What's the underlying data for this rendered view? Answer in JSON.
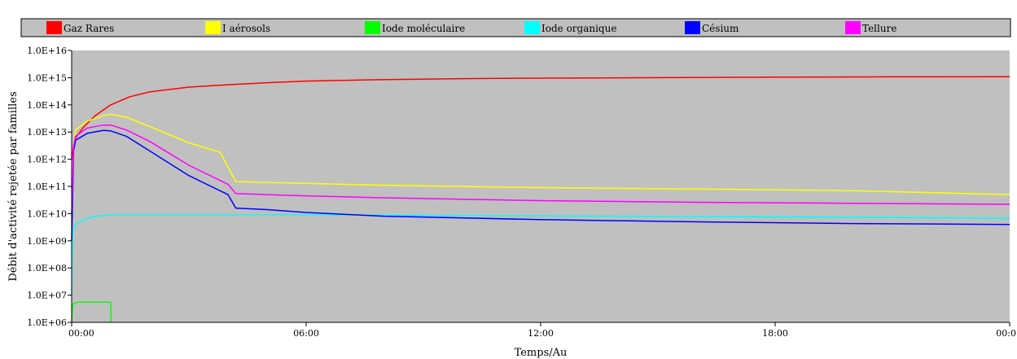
{
  "chart_data": {
    "type": "line",
    "xlabel": "Temps/Au",
    "ylabel": "Débit d'activité  rejetée par familles",
    "y_scale": "log",
    "ylim": [
      1000000,
      10000000000000000
    ],
    "xlim": [
      0,
      24
    ],
    "grid": false,
    "legend_placement": "top",
    "plot_background": "#c0c0c0",
    "x_ticks": [
      {
        "value": 0,
        "label": "00:00"
      },
      {
        "value": 6,
        "label": "06:00"
      },
      {
        "value": 12,
        "label": "12:00"
      },
      {
        "value": 18,
        "label": "18:00"
      },
      {
        "value": 24,
        "label": "00:0"
      }
    ],
    "y_ticks": [
      {
        "value": 1000000,
        "label": "1.0E+06"
      },
      {
        "value": 10000000,
        "label": "1.0E+07"
      },
      {
        "value": 100000000,
        "label": "1.0E+08"
      },
      {
        "value": 1000000000,
        "label": "1.0E+09"
      },
      {
        "value": 10000000000,
        "label": "1.0E+10"
      },
      {
        "value": 100000000000,
        "label": "1.0E+11"
      },
      {
        "value": 1000000000000,
        "label": "1.0E+12"
      },
      {
        "value": 10000000000000,
        "label": "1.0E+13"
      },
      {
        "value": 100000000000000,
        "label": "1.0E+14"
      },
      {
        "value": 1000000000000000,
        "label": "1.0E+15"
      },
      {
        "value": 10000000000000000,
        "label": "1.0E+16"
      }
    ],
    "series": [
      {
        "name": "Gaz Rares",
        "color": "#ff0000",
        "x": [
          0,
          0.05,
          0.1,
          0.3,
          0.6,
          1,
          1.5,
          2,
          3,
          4,
          5,
          6,
          8,
          10,
          12,
          15,
          18,
          21,
          24
        ],
        "y": [
          1000000000000.0,
          3000000000000.0,
          6000000000000.0,
          15000000000000.0,
          40000000000000.0,
          100000000000000.0,
          200000000000000.0,
          300000000000000.0,
          450000000000000.0,
          550000000000000.0,
          650000000000000.0,
          750000000000000.0,
          850000000000000.0,
          920000000000000.0,
          960000000000000.0,
          1000000000000000.0,
          1050000000000000.0,
          1070000000000000.0,
          1080000000000000.0
        ]
      },
      {
        "name": "I aérosols",
        "color": "#ffff00",
        "x": [
          0,
          0.05,
          0.1,
          0.4,
          0.8,
          1,
          1.4,
          2,
          3,
          3.8,
          4.2,
          5,
          6,
          8,
          12,
          16,
          20,
          24
        ],
        "y": [
          100000000000.0,
          2000000000000.0,
          12000000000000.0,
          25000000000000.0,
          40000000000000.0,
          45000000000000.0,
          35000000000000.0,
          16000000000000.0,
          4000000000000.0,
          1800000000000.0,
          150000000000.0,
          140000000000.0,
          130000000000.0,
          110000000000.0,
          90000000000.0,
          80000000000.0,
          70000000000.0,
          50000000000.0
        ]
      },
      {
        "name": "Iode moléculaire",
        "color": "#00ff00",
        "x": [
          0,
          0.02,
          0.05,
          0.15,
          0.5,
          1,
          1.01
        ],
        "y": [
          1000000.0,
          4000000.0,
          5000000.0,
          5500000.0,
          5500000.0,
          5500000.0,
          1000000.0
        ]
      },
      {
        "name": "Iode organique",
        "color": "#00ffff",
        "x": [
          0,
          0.02,
          0.1,
          0.3,
          0.6,
          1,
          1.5,
          2,
          3,
          4,
          6,
          8,
          10,
          12,
          16,
          20,
          24
        ],
        "y": [
          10000000.0,
          2000000000.0,
          4000000000.0,
          6000000000.0,
          8000000000.0,
          9000000000.0,
          9000000000.0,
          9000000000.0,
          9000000000.0,
          9000000000.0,
          9000000000.0,
          8800000000.0,
          8500000000.0,
          8200000000.0,
          7800000000.0,
          7300000000.0,
          6800000000.0
        ]
      },
      {
        "name": "Césium",
        "color": "#0000ff",
        "x": [
          0,
          0.05,
          0.1,
          0.4,
          0.8,
          1,
          1.4,
          2,
          3,
          4,
          4.2,
          5,
          6,
          8,
          12,
          16,
          20,
          24
        ],
        "y": [
          1000000000.0,
          2000000000000.0,
          5000000000000.0,
          9000000000000.0,
          11500000000000.0,
          11000000000000.0,
          7000000000000.0,
          2000000000000.0,
          250000000000.0,
          50000000000.0,
          16000000000.0,
          14000000000.0,
          11000000000.0,
          8000000000.0,
          6000000000.0,
          5000000000.0,
          4300000000.0,
          4000000000.0
        ]
      },
      {
        "name": "Tellure",
        "color": "#ff00ff",
        "x": [
          0,
          0.05,
          0.1,
          0.4,
          0.8,
          1,
          1.4,
          2,
          3,
          4,
          4.2,
          5,
          6,
          8,
          12,
          16,
          20,
          24
        ],
        "y": [
          10000000000.0,
          3000000000000.0,
          7000000000000.0,
          14000000000000.0,
          18000000000000.0,
          18000000000000.0,
          12000000000000.0,
          4500000000000.0,
          600000000000.0,
          120000000000.0,
          55000000000.0,
          50000000000.0,
          45000000000.0,
          38000000000.0,
          30000000000.0,
          26000000000.0,
          24000000000.0,
          22000000000.0
        ]
      }
    ]
  }
}
